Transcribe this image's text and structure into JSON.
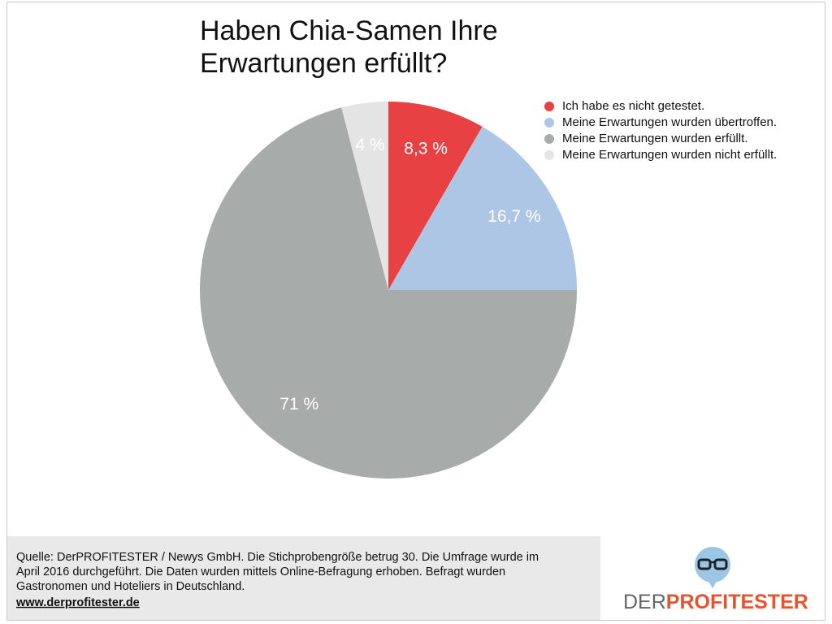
{
  "chart_data": {
    "type": "pie",
    "title": [
      "Haben Chia-Samen Ihre",
      "Erwartungen erfüllt?"
    ],
    "categories": [
      "Ich habe es nicht getestet.",
      "Meine Erwartungen wurden übertroffen.",
      "Meine Erwartungen wurden erfüllt.",
      "Meine Erwartungen wurden nicht erfüllt."
    ],
    "values": [
      8.3,
      16.7,
      71,
      4
    ],
    "value_labels": [
      "8,3 %",
      "16,7 %",
      "71 %",
      "4 %"
    ],
    "colors": [
      "#e84144",
      "#adc6e5",
      "#a7abaa",
      "#e4e4e4"
    ],
    "legend": "upper right"
  },
  "footer": {
    "source": [
      "Quelle: DerPROFITESTER / Newys GmbH. Die Stichprobengröße betrug 30. Die Umfrage wurde im",
      "April 2016 durchgeführt. Die Daten wurden mittels Online-Befragung erhoben. Befragt wurden",
      "Gastronomen und Hoteliers in Deutschland."
    ],
    "url": "www.derprofitester.de"
  },
  "logo": {
    "prefix": "DER",
    "name": "PROFITESTER"
  }
}
